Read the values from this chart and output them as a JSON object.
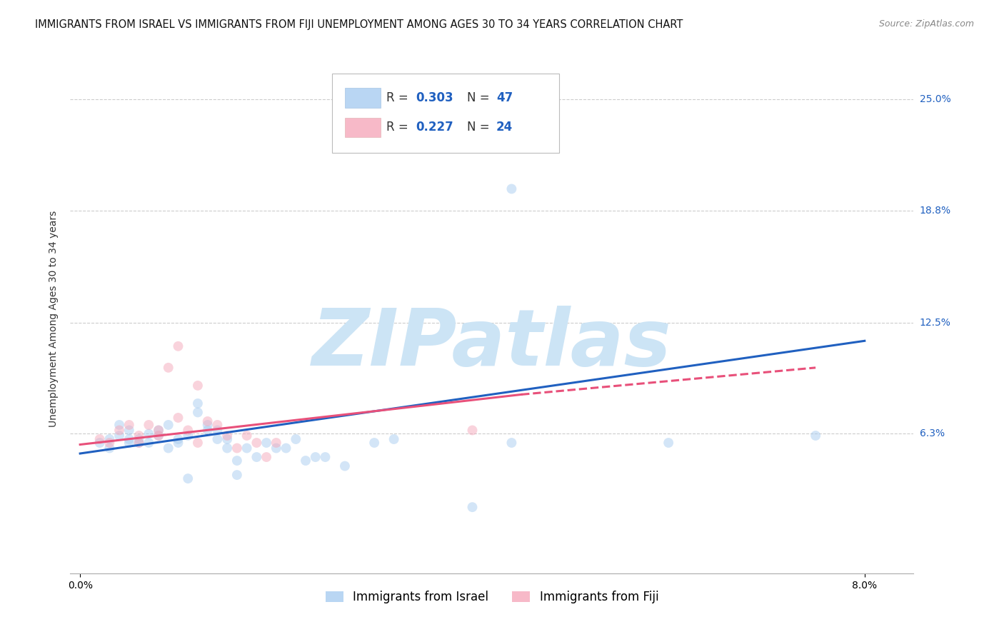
{
  "title": "IMMIGRANTS FROM ISRAEL VS IMMIGRANTS FROM FIJI UNEMPLOYMENT AMONG AGES 30 TO 34 YEARS CORRELATION CHART",
  "source": "Source: ZipAtlas.com",
  "ylabel_label": "Unemployment Among Ages 30 to 34 years",
  "ytick_labels": [
    "6.3%",
    "12.5%",
    "18.8%",
    "25.0%"
  ],
  "ytick_values": [
    0.063,
    0.125,
    0.188,
    0.25
  ],
  "xtick_labels": [
    "0.0%",
    "8.0%"
  ],
  "xtick_values": [
    0.0,
    0.08
  ],
  "xlim": [
    -0.001,
    0.085
  ],
  "ylim": [
    -0.015,
    0.27
  ],
  "legend_israel": {
    "R": 0.303,
    "N": 47,
    "color": "#a8ccf0"
  },
  "legend_fiji": {
    "R": 0.227,
    "N": 24,
    "color": "#f5a8bb"
  },
  "israel_scatter": [
    [
      0.002,
      0.058
    ],
    [
      0.003,
      0.06
    ],
    [
      0.003,
      0.055
    ],
    [
      0.004,
      0.062
    ],
    [
      0.004,
      0.068
    ],
    [
      0.005,
      0.06
    ],
    [
      0.005,
      0.058
    ],
    [
      0.005,
      0.065
    ],
    [
      0.006,
      0.06
    ],
    [
      0.006,
      0.058
    ],
    [
      0.007,
      0.063
    ],
    [
      0.007,
      0.058
    ],
    [
      0.008,
      0.062
    ],
    [
      0.008,
      0.065
    ],
    [
      0.009,
      0.068
    ],
    [
      0.009,
      0.055
    ],
    [
      0.01,
      0.058
    ],
    [
      0.01,
      0.06
    ],
    [
      0.011,
      0.062
    ],
    [
      0.011,
      0.038
    ],
    [
      0.012,
      0.08
    ],
    [
      0.012,
      0.075
    ],
    [
      0.013,
      0.068
    ],
    [
      0.013,
      0.065
    ],
    [
      0.014,
      0.065
    ],
    [
      0.014,
      0.06
    ],
    [
      0.015,
      0.06
    ],
    [
      0.015,
      0.055
    ],
    [
      0.016,
      0.048
    ],
    [
      0.016,
      0.04
    ],
    [
      0.017,
      0.055
    ],
    [
      0.018,
      0.05
    ],
    [
      0.019,
      0.058
    ],
    [
      0.02,
      0.055
    ],
    [
      0.021,
      0.055
    ],
    [
      0.022,
      0.06
    ],
    [
      0.023,
      0.048
    ],
    [
      0.024,
      0.05
    ],
    [
      0.025,
      0.05
    ],
    [
      0.027,
      0.045
    ],
    [
      0.03,
      0.058
    ],
    [
      0.032,
      0.06
    ],
    [
      0.04,
      0.022
    ],
    [
      0.044,
      0.058
    ],
    [
      0.044,
      0.2
    ],
    [
      0.06,
      0.058
    ],
    [
      0.075,
      0.062
    ]
  ],
  "fiji_scatter": [
    [
      0.002,
      0.06
    ],
    [
      0.003,
      0.058
    ],
    [
      0.004,
      0.065
    ],
    [
      0.005,
      0.068
    ],
    [
      0.006,
      0.062
    ],
    [
      0.006,
      0.058
    ],
    [
      0.007,
      0.068
    ],
    [
      0.008,
      0.065
    ],
    [
      0.008,
      0.062
    ],
    [
      0.009,
      0.1
    ],
    [
      0.01,
      0.072
    ],
    [
      0.01,
      0.112
    ],
    [
      0.011,
      0.065
    ],
    [
      0.012,
      0.09
    ],
    [
      0.012,
      0.058
    ],
    [
      0.013,
      0.07
    ],
    [
      0.014,
      0.068
    ],
    [
      0.015,
      0.062
    ],
    [
      0.016,
      0.055
    ],
    [
      0.017,
      0.062
    ],
    [
      0.018,
      0.058
    ],
    [
      0.019,
      0.05
    ],
    [
      0.02,
      0.058
    ],
    [
      0.04,
      0.065
    ]
  ],
  "israel_line": {
    "x0": 0.0,
    "y0": 0.052,
    "x1": 0.08,
    "y1": 0.115
  },
  "fiji_line_solid": {
    "x0": 0.0,
    "y0": 0.057,
    "x1": 0.045,
    "y1": 0.085
  },
  "fiji_line_dash": {
    "x0": 0.045,
    "y0": 0.085,
    "x1": 0.075,
    "y1": 0.1
  },
  "israel_line_color": "#2060c0",
  "fiji_line_color": "#e8507a",
  "scatter_size": 100,
  "scatter_alpha": 0.5,
  "line_width": 2.2,
  "watermark": "ZIPatlas",
  "watermark_color": "#cce4f5",
  "background_color": "#ffffff",
  "grid_color": "#cccccc",
  "title_fontsize": 10.5,
  "axis_label_fontsize": 10,
  "tick_fontsize": 10,
  "legend_fontsize": 12,
  "source_fontsize": 9,
  "ytick_color": "#2060c0"
}
